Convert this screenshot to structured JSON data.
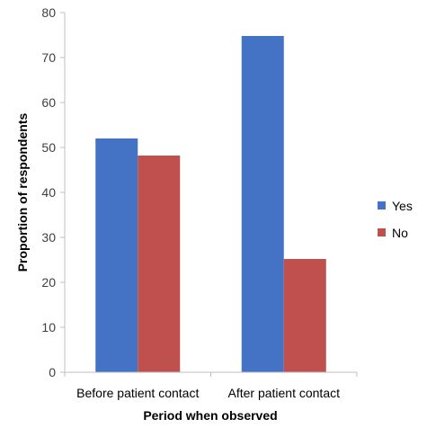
{
  "chart_data": {
    "type": "bar",
    "title": "",
    "xlabel": "Period when observed",
    "ylabel": "Proportion of respondents",
    "categories": [
      "Before patient contact",
      "After patient contact"
    ],
    "series": [
      {
        "name": "Yes",
        "values": [
          52,
          74.8
        ],
        "color": "#4472C4"
      },
      {
        "name": "No",
        "values": [
          48.2,
          25.2
        ],
        "color": "#C0504D"
      }
    ],
    "ylim": [
      0,
      80
    ],
    "yticks": [
      0,
      10,
      20,
      30,
      40,
      50,
      60,
      70,
      80
    ],
    "grid": false,
    "legend_position": "right"
  }
}
